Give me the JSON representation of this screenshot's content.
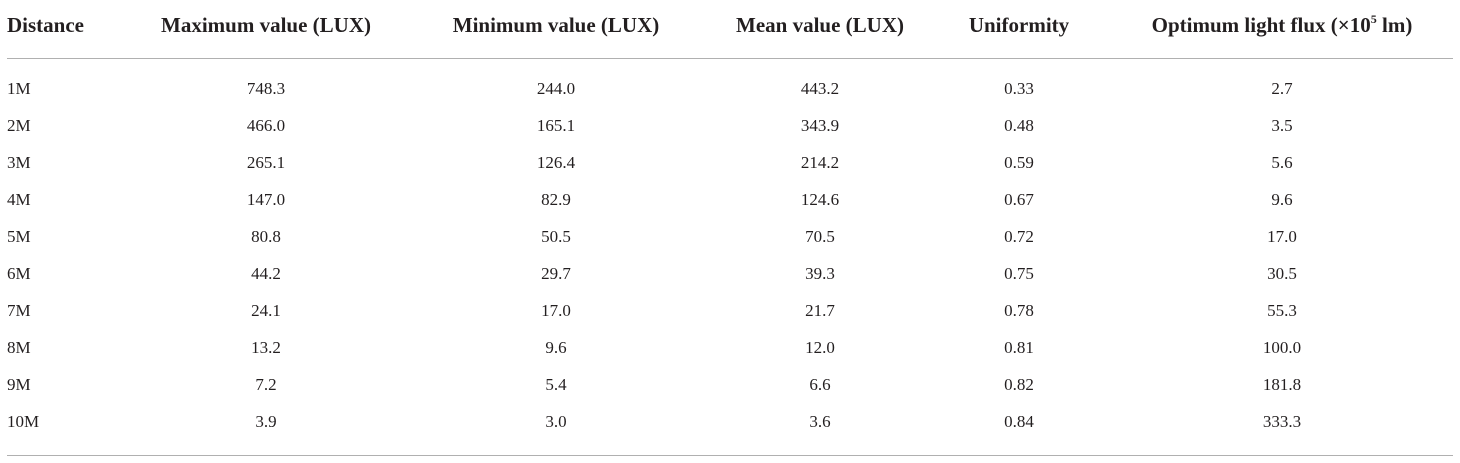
{
  "table": {
    "headers": {
      "distance": "Distance",
      "max": "Maximum value (LUX)",
      "min": "Minimum value (LUX)",
      "mean": "Mean value (LUX)",
      "uniformity": "Uniformity",
      "flux_prefix": "Optimum light flux (×10",
      "flux_exp": "5",
      "flux_suffix": " lm)"
    },
    "rows": [
      {
        "distance": "1M",
        "max": "748.3",
        "min": "244.0",
        "mean": "443.2",
        "uniformity": "0.33",
        "flux": "2.7"
      },
      {
        "distance": "2M",
        "max": "466.0",
        "min": "165.1",
        "mean": "343.9",
        "uniformity": "0.48",
        "flux": "3.5"
      },
      {
        "distance": "3M",
        "max": "265.1",
        "min": "126.4",
        "mean": "214.2",
        "uniformity": "0.59",
        "flux": "5.6"
      },
      {
        "distance": "4M",
        "max": "147.0",
        "min": "82.9",
        "mean": "124.6",
        "uniformity": "0.67",
        "flux": "9.6"
      },
      {
        "distance": "5M",
        "max": "80.8",
        "min": "50.5",
        "mean": "70.5",
        "uniformity": "0.72",
        "flux": "17.0"
      },
      {
        "distance": "6M",
        "max": "44.2",
        "min": "29.7",
        "mean": "39.3",
        "uniformity": "0.75",
        "flux": "30.5"
      },
      {
        "distance": "7M",
        "max": "24.1",
        "min": "17.0",
        "mean": "21.7",
        "uniformity": "0.78",
        "flux": "55.3"
      },
      {
        "distance": "8M",
        "max": "13.2",
        "min": "9.6",
        "mean": "12.0",
        "uniformity": "0.81",
        "flux": "100.0"
      },
      {
        "distance": "9M",
        "max": "7.2",
        "min": "5.4",
        "mean": "6.6",
        "uniformity": "0.82",
        "flux": "181.8"
      },
      {
        "distance": "10M",
        "max": "3.9",
        "min": "3.0",
        "mean": "3.6",
        "uniformity": "0.84",
        "flux": "333.3"
      }
    ]
  }
}
